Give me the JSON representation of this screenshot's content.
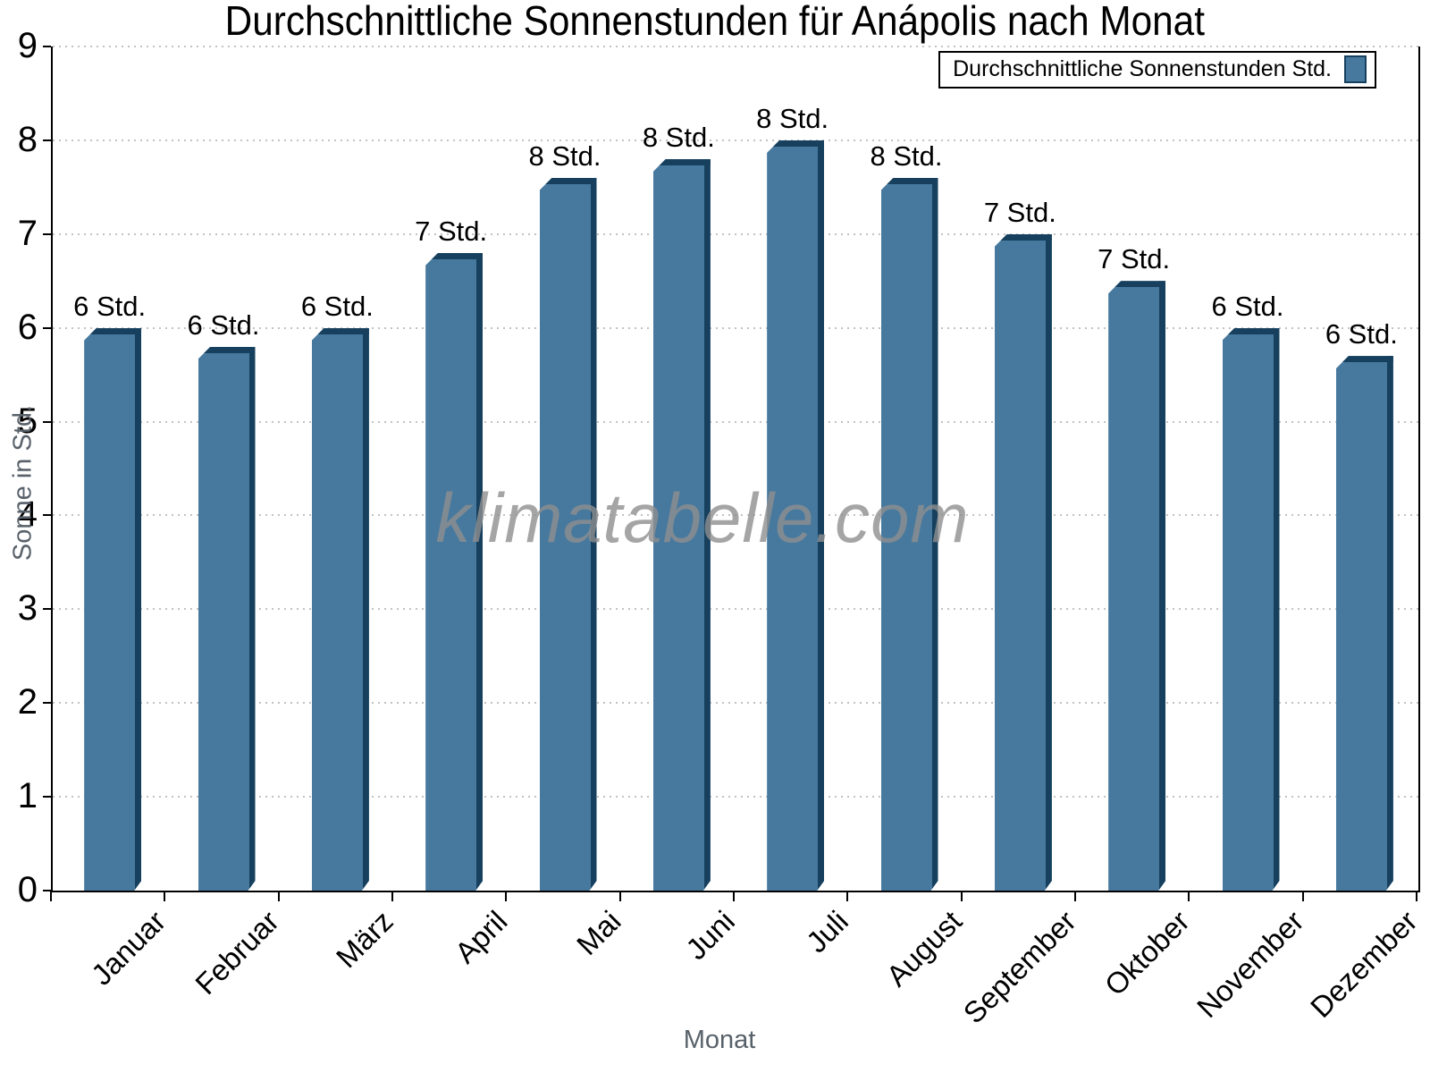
{
  "title": "Durchschnittliche Sonnenstunden für Anápolis nach Monat",
  "legend": {
    "label": "Durchschnittliche Sonnenstunden Std."
  },
  "watermark": "klimatabelle.com",
  "chart_data": {
    "type": "bar",
    "title": "Durchschnittliche Sonnenstunden für Anápolis nach Monat",
    "xlabel": "Monat",
    "ylabel": "Sonne in Std.",
    "ylim": [
      0,
      9
    ],
    "yticks": [
      0,
      1,
      2,
      3,
      4,
      5,
      6,
      7,
      8,
      9
    ],
    "grid": "horizontal-dotted",
    "legend_position": "top-right",
    "categories": [
      "Januar",
      "Februar",
      "März",
      "April",
      "Mai",
      "Juni",
      "Juli",
      "August",
      "September",
      "Oktober",
      "November",
      "Dezember"
    ],
    "series": [
      {
        "name": "Durchschnittliche Sonnenstunden Std.",
        "values": [
          6.0,
          5.8,
          6.0,
          6.8,
          7.6,
          7.8,
          8.0,
          7.6,
          7.0,
          6.5,
          6.0,
          5.7
        ],
        "bar_labels": [
          "6 Std.",
          "6 Std.",
          "6 Std.",
          "7 Std.",
          "8 Std.",
          "8 Std.",
          "8 Std.",
          "8 Std.",
          "7 Std.",
          "7 Std.",
          "6 Std.",
          "6 Std."
        ]
      }
    ],
    "colors": {
      "bar_face": "#47799E",
      "bar_edge": "#16405E",
      "grid": "#C2C2C2",
      "axis": "#000000",
      "muted_label": "#58616A",
      "watermark": "rgba(142,142,142,0.8)"
    }
  }
}
